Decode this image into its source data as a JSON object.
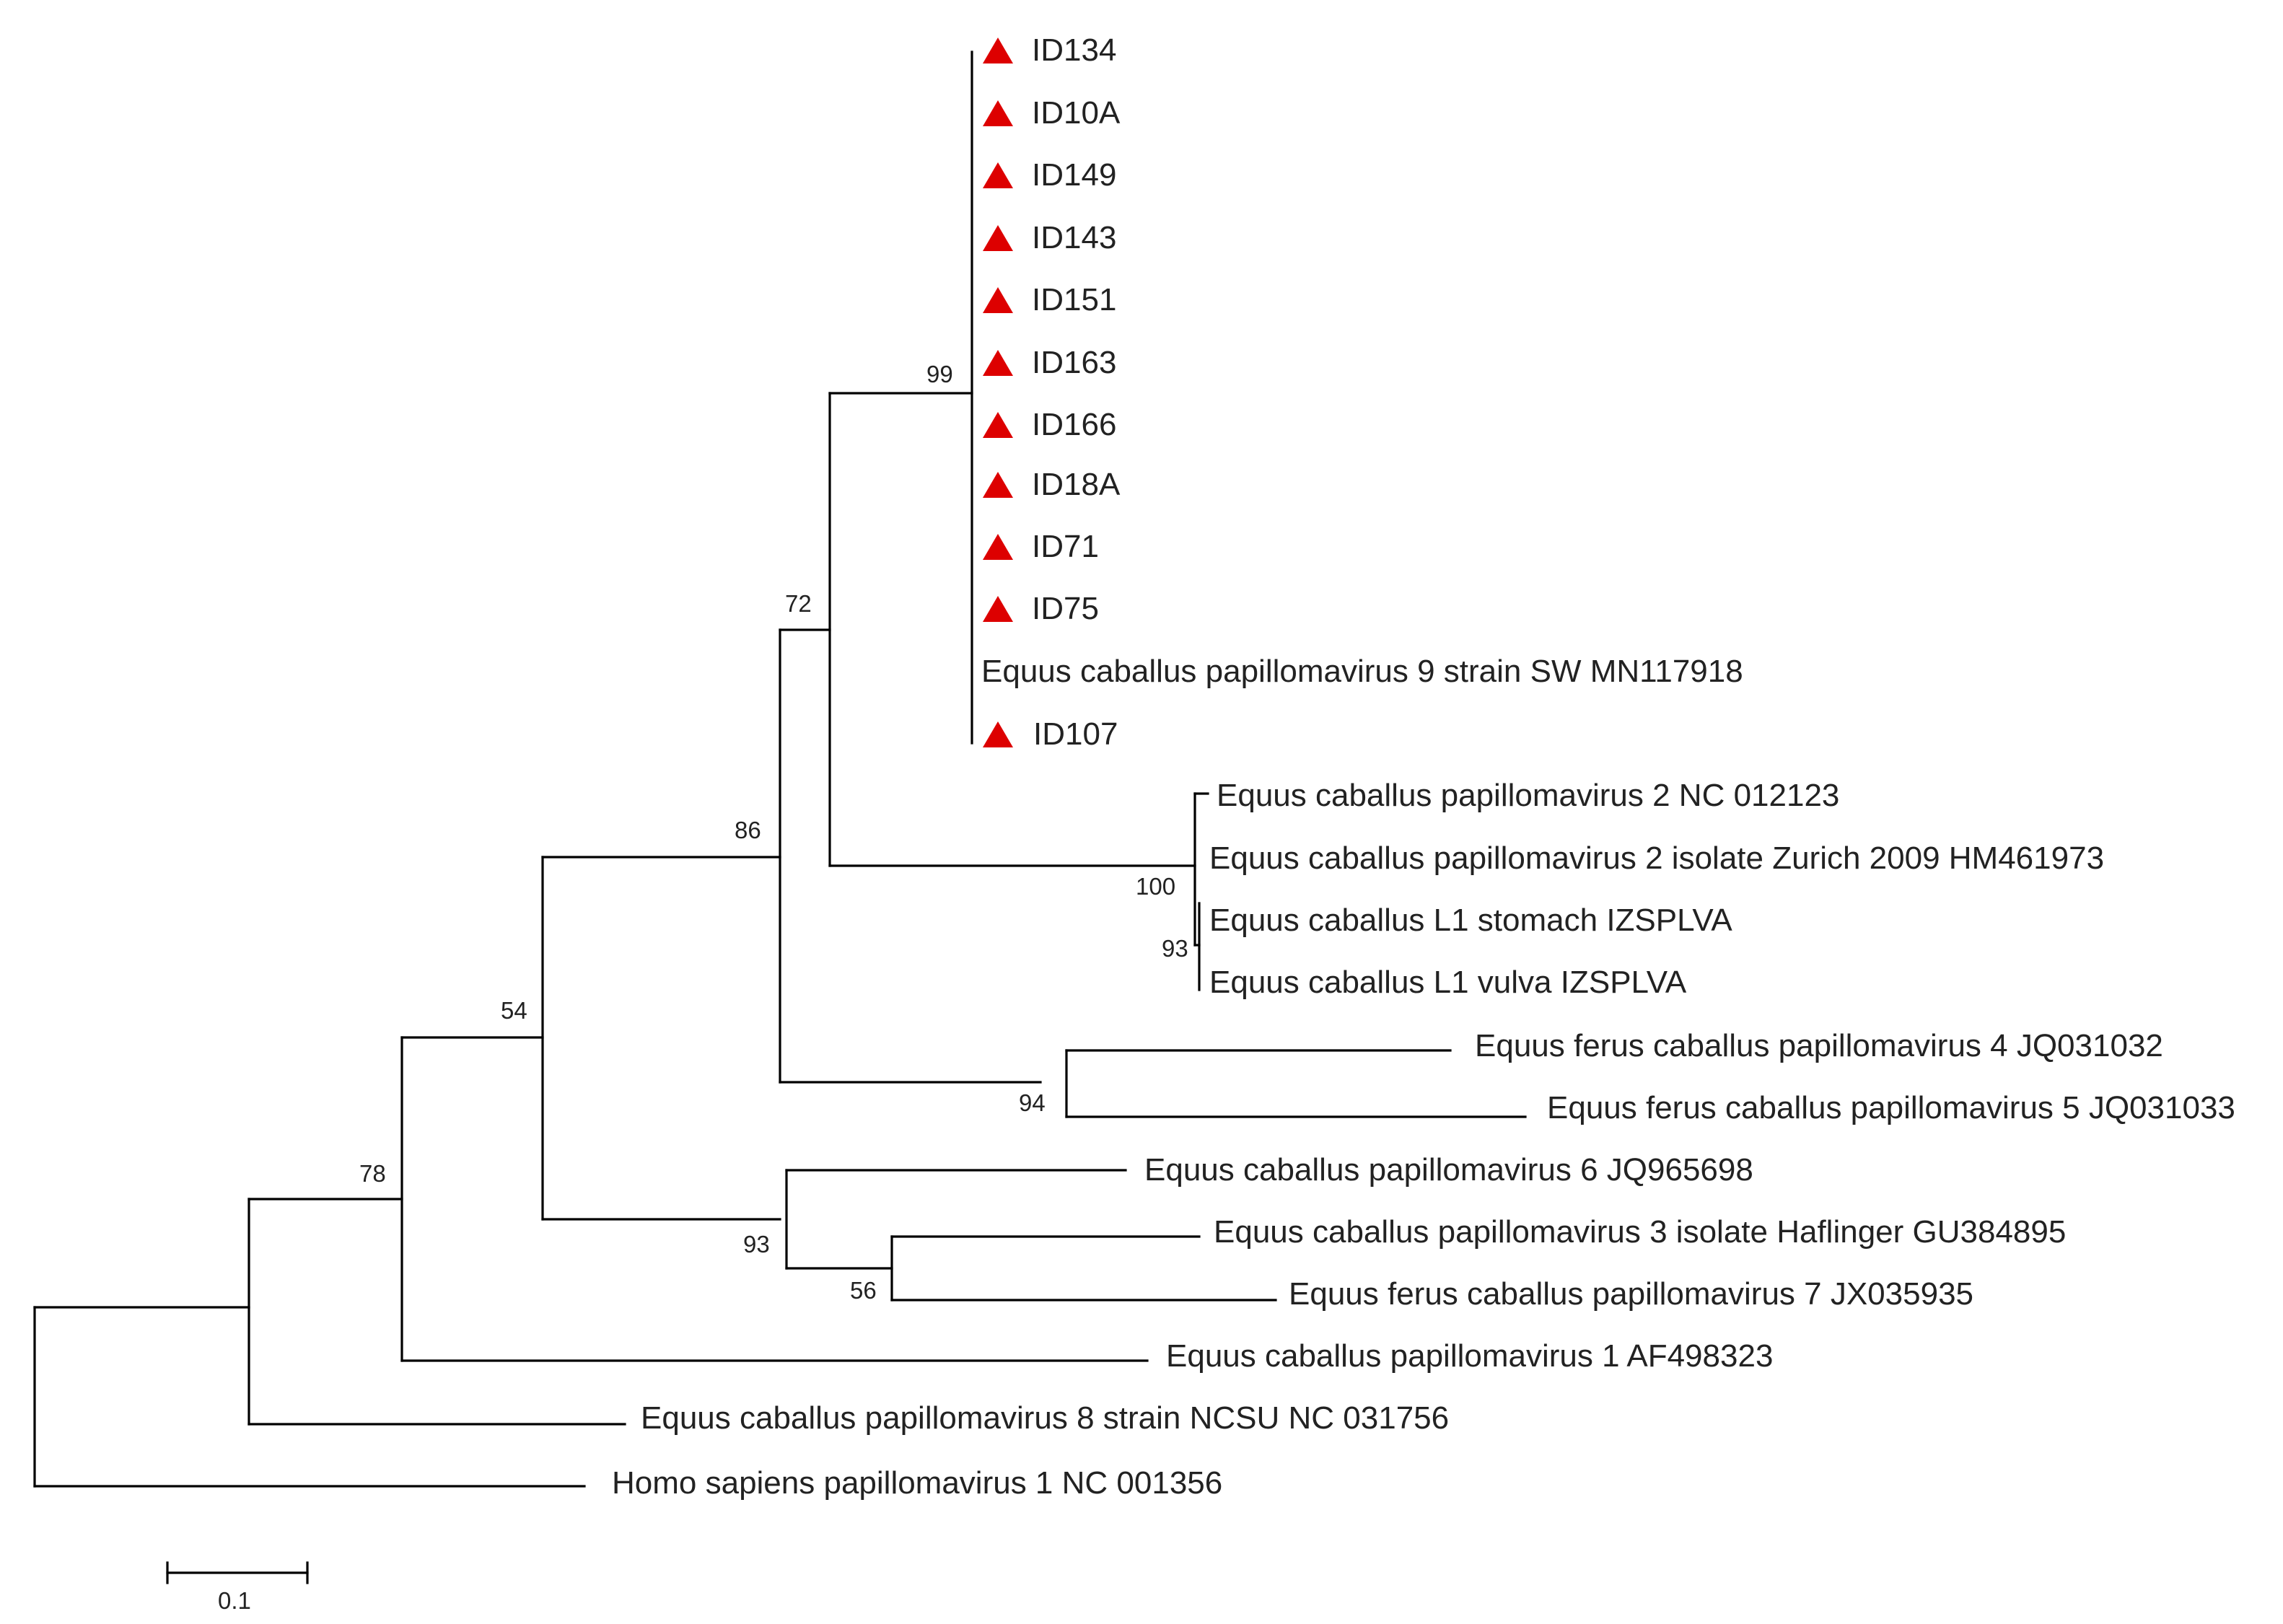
{
  "tree": {
    "type": "phylogenetic-tree",
    "marker_color": "#dd0000",
    "leaves": [
      {
        "id": "ID134",
        "label": "ID134",
        "marked": true
      },
      {
        "id": "ID10A",
        "label": "ID10A",
        "marked": true
      },
      {
        "id": "ID149",
        "label": "ID149",
        "marked": true
      },
      {
        "id": "ID143",
        "label": "ID143",
        "marked": true
      },
      {
        "id": "ID151",
        "label": "ID151",
        "marked": true
      },
      {
        "id": "ID163",
        "label": "ID163",
        "marked": true
      },
      {
        "id": "ID166",
        "label": "ID166",
        "marked": true
      },
      {
        "id": "ID18A",
        "label": "ID18A",
        "marked": true
      },
      {
        "id": "ID71",
        "label": "ID71",
        "marked": true
      },
      {
        "id": "ID75",
        "label": "ID75",
        "marked": true
      },
      {
        "id": "ECPV9",
        "label": "Equus caballus papillomavirus 9 strain SW MN117918",
        "marked": false
      },
      {
        "id": "ID107",
        "label": "ID107",
        "marked": true
      },
      {
        "id": "ECPV2a",
        "label": "Equus caballus papillomavirus 2 NC 012123",
        "marked": false
      },
      {
        "id": "ECPV2b",
        "label": "Equus caballus papillomavirus 2 isolate Zurich 2009 HM461973",
        "marked": false
      },
      {
        "id": "L1st",
        "label": "Equus caballus L1 stomach IZSPLVA",
        "marked": false
      },
      {
        "id": "L1vu",
        "label": "Equus caballus L1 vulva IZSPLVA",
        "marked": false
      },
      {
        "id": "EFCPV4",
        "label": "Equus ferus caballus papillomavirus 4 JQ031032",
        "marked": false
      },
      {
        "id": "EFCPV5",
        "label": "Equus ferus caballus papillomavirus 5 JQ031033",
        "marked": false
      },
      {
        "id": "ECPV6",
        "label": "Equus caballus papillomavirus 6 JQ965698",
        "marked": false
      },
      {
        "id": "ECPV3",
        "label": "Equus caballus papillomavirus 3 isolate Haflinger GU384895",
        "marked": false
      },
      {
        "id": "EFCPV7",
        "label": "Equus ferus caballus papillomavirus 7 JX035935",
        "marked": false
      },
      {
        "id": "ECPV1",
        "label": "Equus caballus papillomavirus 1 AF498323",
        "marked": false
      },
      {
        "id": "ECPV8",
        "label": "Equus caballus papillomavirus 8 strain NCSU NC 031756",
        "marked": false
      },
      {
        "id": "HPV1",
        "label": "Homo sapiens papillomavirus 1 NC 001356",
        "marked": false
      }
    ],
    "bootstrap": [
      {
        "node": "clade-ECPV9",
        "value": "99"
      },
      {
        "node": "clade-ECPV9-ECPV2",
        "value": "72"
      },
      {
        "node": "clade-ECPV2-4-5-9",
        "value": "86"
      },
      {
        "node": "clade-main",
        "value": "54"
      },
      {
        "node": "clade-all-equine-but-8",
        "value": "78"
      },
      {
        "node": "clade-ECPV2",
        "value": "100"
      },
      {
        "node": "clade-L1",
        "value": "93"
      },
      {
        "node": "clade-ECPV4-5",
        "value": "94"
      },
      {
        "node": "clade-ECPV3-6-7",
        "value": "93"
      },
      {
        "node": "clade-ECPV3-7",
        "value": "56"
      }
    ],
    "scale_bar": {
      "value": 0.1,
      "label": "0.1"
    }
  }
}
